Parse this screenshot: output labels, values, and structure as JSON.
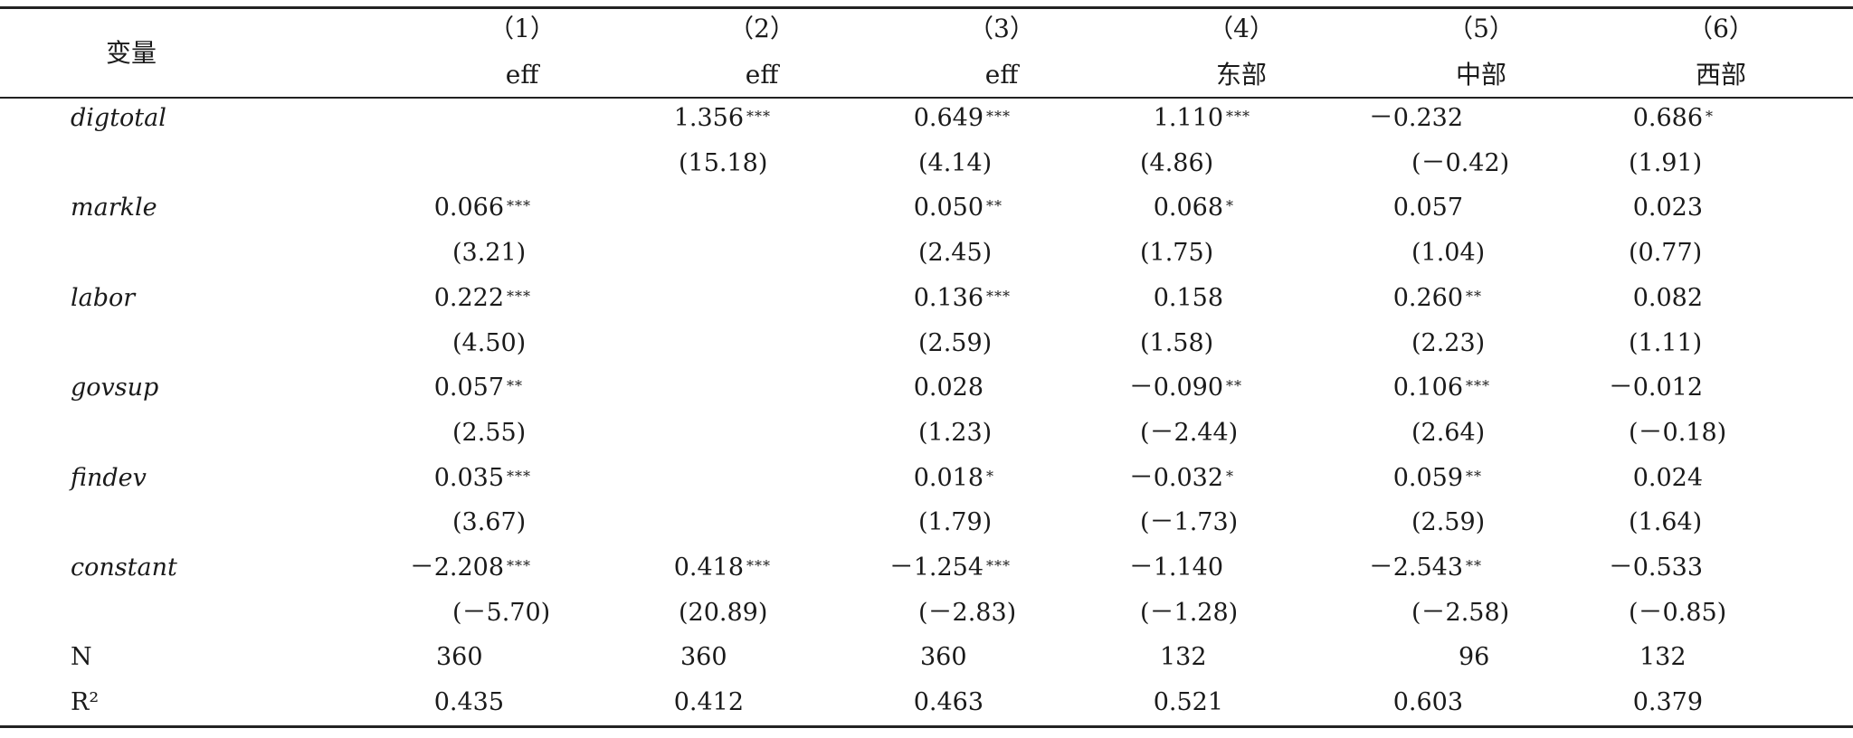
{
  "header": {
    "row_label": "变量",
    "columns": [
      {
        "num": "（1）",
        "name": "eff"
      },
      {
        "num": "（2）",
        "name": "eff"
      },
      {
        "num": "（3）",
        "name": "eff"
      },
      {
        "num": "（4）",
        "name": "东部"
      },
      {
        "num": "（5）",
        "name": "中部"
      },
      {
        "num": "（6）",
        "name": "西部"
      }
    ]
  },
  "rows": [
    {
      "label": "digtotal",
      "italic": true,
      "cells": [
        {
          "v": "",
          "s": ""
        },
        {
          "v": "1.356",
          "s": "***"
        },
        {
          "v": "0.649",
          "s": "***"
        },
        {
          "v": "1.110",
          "s": "***"
        },
        {
          "v": "－0.232",
          "s": ""
        },
        {
          "v": "0.686",
          "s": "*"
        }
      ]
    },
    {
      "label": "",
      "italic": false,
      "cells": [
        {
          "v": "",
          "s": ""
        },
        {
          "v": "(15.18)",
          "s": ""
        },
        {
          "v": "(4.14)",
          "s": ""
        },
        {
          "v": "(4.86)",
          "s": ""
        },
        {
          "v": "(－0.42)",
          "s": ""
        },
        {
          "v": "(1.91)",
          "s": ""
        }
      ]
    },
    {
      "label": "markle",
      "italic": true,
      "cells": [
        {
          "v": "0.066",
          "s": "***"
        },
        {
          "v": "",
          "s": ""
        },
        {
          "v": "0.050",
          "s": "**"
        },
        {
          "v": "0.068",
          "s": "*"
        },
        {
          "v": "0.057",
          "s": ""
        },
        {
          "v": "0.023",
          "s": ""
        }
      ]
    },
    {
      "label": "",
      "italic": false,
      "cells": [
        {
          "v": "(3.21)",
          "s": ""
        },
        {
          "v": "",
          "s": ""
        },
        {
          "v": "(2.45)",
          "s": ""
        },
        {
          "v": "(1.75)",
          "s": ""
        },
        {
          "v": "(1.04)",
          "s": ""
        },
        {
          "v": "(0.77)",
          "s": ""
        }
      ]
    },
    {
      "label": "labor",
      "italic": true,
      "cells": [
        {
          "v": "0.222",
          "s": "***"
        },
        {
          "v": "",
          "s": ""
        },
        {
          "v": "0.136",
          "s": "***"
        },
        {
          "v": "0.158",
          "s": ""
        },
        {
          "v": "0.260",
          "s": "**"
        },
        {
          "v": "0.082",
          "s": ""
        }
      ]
    },
    {
      "label": "",
      "italic": false,
      "cells": [
        {
          "v": "(4.50)",
          "s": ""
        },
        {
          "v": "",
          "s": ""
        },
        {
          "v": "(2.59)",
          "s": ""
        },
        {
          "v": "(1.58)",
          "s": ""
        },
        {
          "v": "(2.23)",
          "s": ""
        },
        {
          "v": "(1.11)",
          "s": ""
        }
      ]
    },
    {
      "label": "govsup",
      "italic": true,
      "cells": [
        {
          "v": "0.057",
          "s": "**"
        },
        {
          "v": "",
          "s": ""
        },
        {
          "v": "0.028",
          "s": ""
        },
        {
          "v": "－0.090",
          "s": "**"
        },
        {
          "v": "0.106",
          "s": "***"
        },
        {
          "v": "－0.012",
          "s": ""
        }
      ]
    },
    {
      "label": "",
      "italic": false,
      "cells": [
        {
          "v": "(2.55)",
          "s": ""
        },
        {
          "v": "",
          "s": ""
        },
        {
          "v": "(1.23)",
          "s": ""
        },
        {
          "v": "(－2.44)",
          "s": ""
        },
        {
          "v": "(2.64)",
          "s": ""
        },
        {
          "v": "(－0.18)",
          "s": ""
        }
      ]
    },
    {
      "label": "findev",
      "italic": true,
      "cells": [
        {
          "v": "0.035",
          "s": "***"
        },
        {
          "v": "",
          "s": ""
        },
        {
          "v": "0.018",
          "s": "*"
        },
        {
          "v": "－0.032",
          "s": "*"
        },
        {
          "v": "0.059",
          "s": "**"
        },
        {
          "v": "0.024",
          "s": ""
        }
      ]
    },
    {
      "label": "",
      "italic": false,
      "cells": [
        {
          "v": "(3.67)",
          "s": ""
        },
        {
          "v": "",
          "s": ""
        },
        {
          "v": "(1.79)",
          "s": ""
        },
        {
          "v": "(－1.73)",
          "s": ""
        },
        {
          "v": "(2.59)",
          "s": ""
        },
        {
          "v": "(1.64)",
          "s": ""
        }
      ]
    },
    {
      "label": "constant",
      "italic": true,
      "cells": [
        {
          "v": "－2.208",
          "s": "***"
        },
        {
          "v": "0.418",
          "s": "***"
        },
        {
          "v": "－1.254",
          "s": "***"
        },
        {
          "v": "－1.140",
          "s": ""
        },
        {
          "v": "－2.543",
          "s": "**"
        },
        {
          "v": "－0.533",
          "s": ""
        }
      ]
    },
    {
      "label": "",
      "italic": false,
      "cells": [
        {
          "v": "(－5.70)",
          "s": ""
        },
        {
          "v": "(20.89)",
          "s": ""
        },
        {
          "v": "(－2.83)",
          "s": ""
        },
        {
          "v": "(－1.28)",
          "s": ""
        },
        {
          "v": "(－2.58)",
          "s": ""
        },
        {
          "v": "(－0.85)",
          "s": ""
        }
      ]
    },
    {
      "label": "N",
      "italic": false,
      "cells": [
        {
          "v": "360",
          "s": ""
        },
        {
          "v": "360",
          "s": ""
        },
        {
          "v": "360",
          "s": ""
        },
        {
          "v": "132",
          "s": ""
        },
        {
          "v": "96",
          "s": ""
        },
        {
          "v": "132",
          "s": ""
        }
      ]
    },
    {
      "label": "R²",
      "italic": false,
      "cells": [
        {
          "v": "0.435",
          "s": ""
        },
        {
          "v": "0.412",
          "s": ""
        },
        {
          "v": "0.463",
          "s": ""
        },
        {
          "v": "0.521",
          "s": ""
        },
        {
          "v": "0.603",
          "s": ""
        },
        {
          "v": "0.379",
          "s": ""
        }
      ]
    }
  ]
}
